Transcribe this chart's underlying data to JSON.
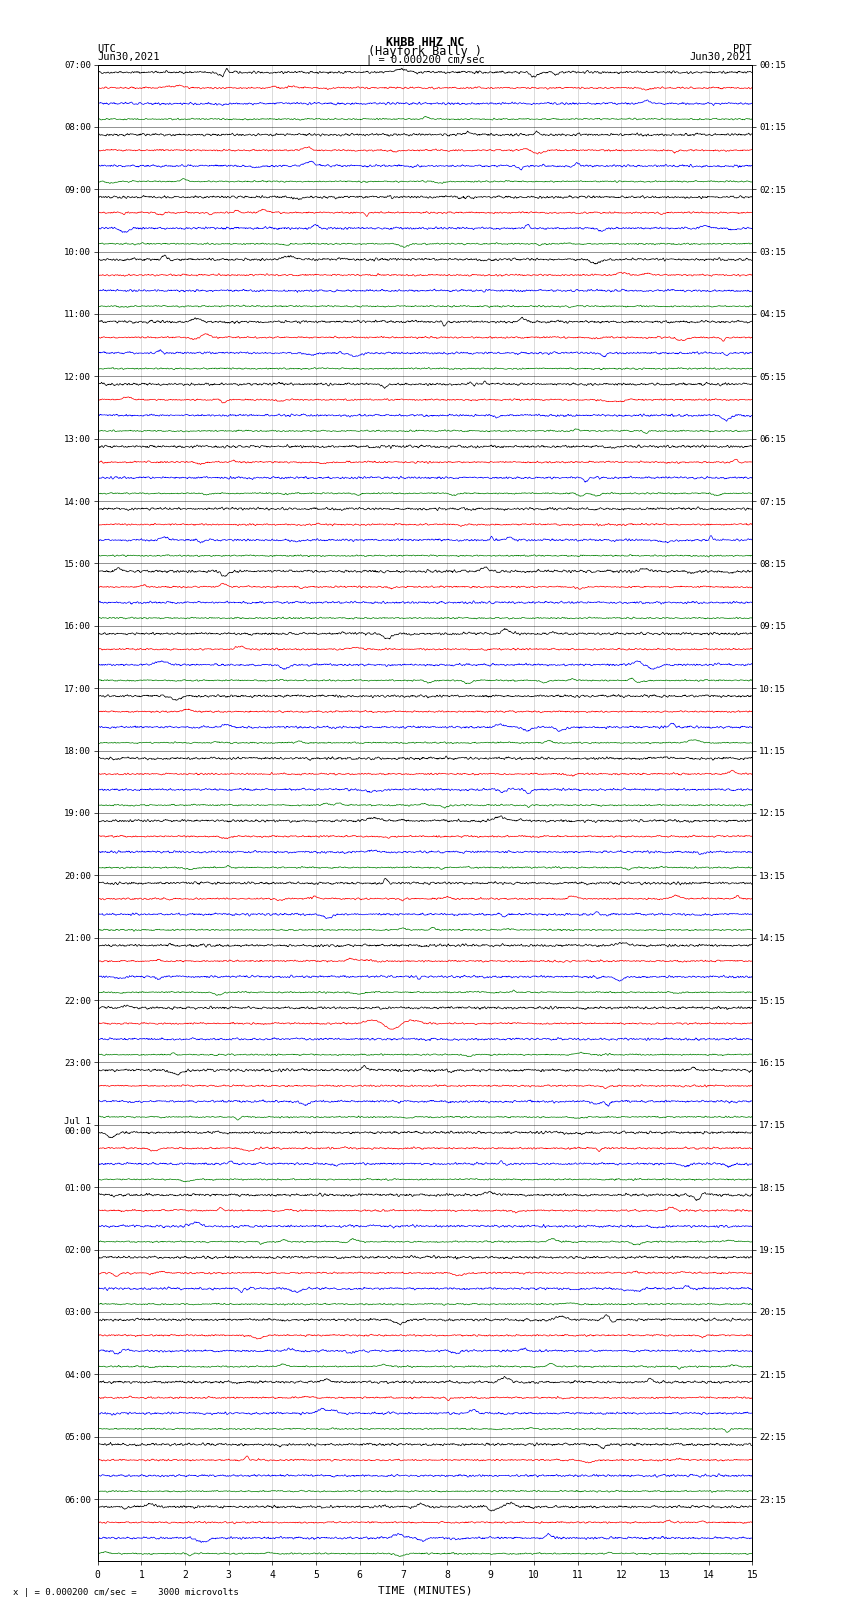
{
  "title_line1": "KHBB HHZ NC",
  "title_line2": "(Hayfork Bally )",
  "scale_label": "| = 0.000200 cm/sec",
  "left_header": "UTC",
  "right_header": "PDT",
  "left_date": "Jun30,2021",
  "right_date": "Jun30,2021",
  "bottom_label": "TIME (MINUTES)",
  "bottom_note": "x | = 0.000200 cm/sec =    3000 microvolts",
  "utc_times": [
    "07:00",
    "08:00",
    "09:00",
    "10:00",
    "11:00",
    "12:00",
    "13:00",
    "14:00",
    "15:00",
    "16:00",
    "17:00",
    "18:00",
    "19:00",
    "20:00",
    "21:00",
    "22:00",
    "23:00",
    "Jul 1\n00:00",
    "01:00",
    "02:00",
    "03:00",
    "04:00",
    "05:00",
    "06:00"
  ],
  "pdt_times": [
    "00:15",
    "01:15",
    "02:15",
    "03:15",
    "04:15",
    "05:15",
    "06:15",
    "07:15",
    "08:15",
    "09:15",
    "10:15",
    "11:15",
    "12:15",
    "13:15",
    "14:15",
    "15:15",
    "16:15",
    "17:15",
    "18:15",
    "19:15",
    "20:15",
    "21:15",
    "22:15",
    "23:15"
  ],
  "n_hour_blocks": 24,
  "traces_per_block": 4,
  "trace_colors": [
    "black",
    "red",
    "blue",
    "green"
  ],
  "x_min": 0,
  "x_max": 15,
  "x_ticks": [
    0,
    1,
    2,
    3,
    4,
    5,
    6,
    7,
    8,
    9,
    10,
    11,
    12,
    13,
    14,
    15
  ],
  "bg_color": "white",
  "line_width": 0.5,
  "noise_amp": 0.08,
  "seed": 42
}
